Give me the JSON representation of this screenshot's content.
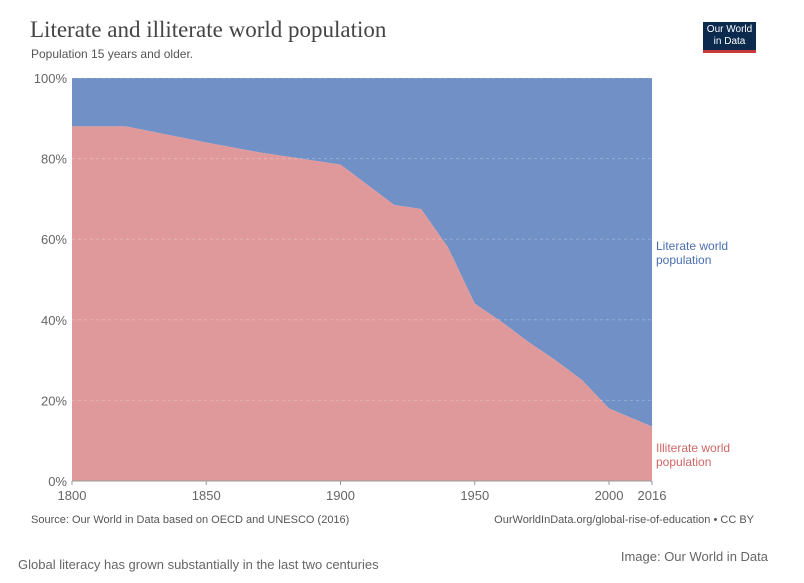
{
  "header": {
    "title": "Literate and illiterate world population",
    "subtitle": "Population 15 years and older.",
    "logo_text": "Our World in Data"
  },
  "footer": {
    "source": "Source: Our World in Data based on OECD and UNESCO (2016)",
    "url": "OurWorldInData.org/global-rise-of-education • CC BY",
    "caption": "Global literacy has grown substantially in the last two centuries",
    "credit": "Image: Our World in Data"
  },
  "colors": {
    "literate": "#7090c6",
    "illiterate": "#e0999a",
    "literate_label": "#4a6fb0",
    "illiterate_label": "#d06666"
  },
  "chart_data": {
    "type": "area",
    "stacked": true,
    "percent": true,
    "title": "Literate and illiterate world population",
    "subtitle": "Population 15 years and older.",
    "x": [
      1800,
      1820,
      1850,
      1870,
      1900,
      1920,
      1930,
      1940,
      1950,
      1960,
      1970,
      1980,
      1990,
      2000,
      2016
    ],
    "series": [
      {
        "name": "Illiterate world population",
        "label_lines": [
          "Illiterate world",
          "population"
        ],
        "values": [
          88,
          88,
          84,
          81.5,
          78.5,
          68.5,
          67.5,
          58,
          44,
          39.5,
          34.5,
          30,
          25,
          18,
          13.5
        ]
      },
      {
        "name": "Literate world population",
        "label_lines": [
          "Literate world",
          "population"
        ],
        "values": [
          12,
          12,
          16,
          18.5,
          21.5,
          31.5,
          32.5,
          42,
          56,
          60.5,
          65.5,
          70,
          75,
          82,
          86.5
        ]
      }
    ],
    "xlim": [
      1800,
      2016
    ],
    "ylim": [
      0,
      100
    ],
    "x_ticks": [
      1800,
      1850,
      1900,
      1950,
      2000,
      2016
    ],
    "y_ticks": [
      "0%",
      "20%",
      "40%",
      "60%",
      "80%",
      "100%"
    ],
    "grid": "horizontal dashed"
  }
}
